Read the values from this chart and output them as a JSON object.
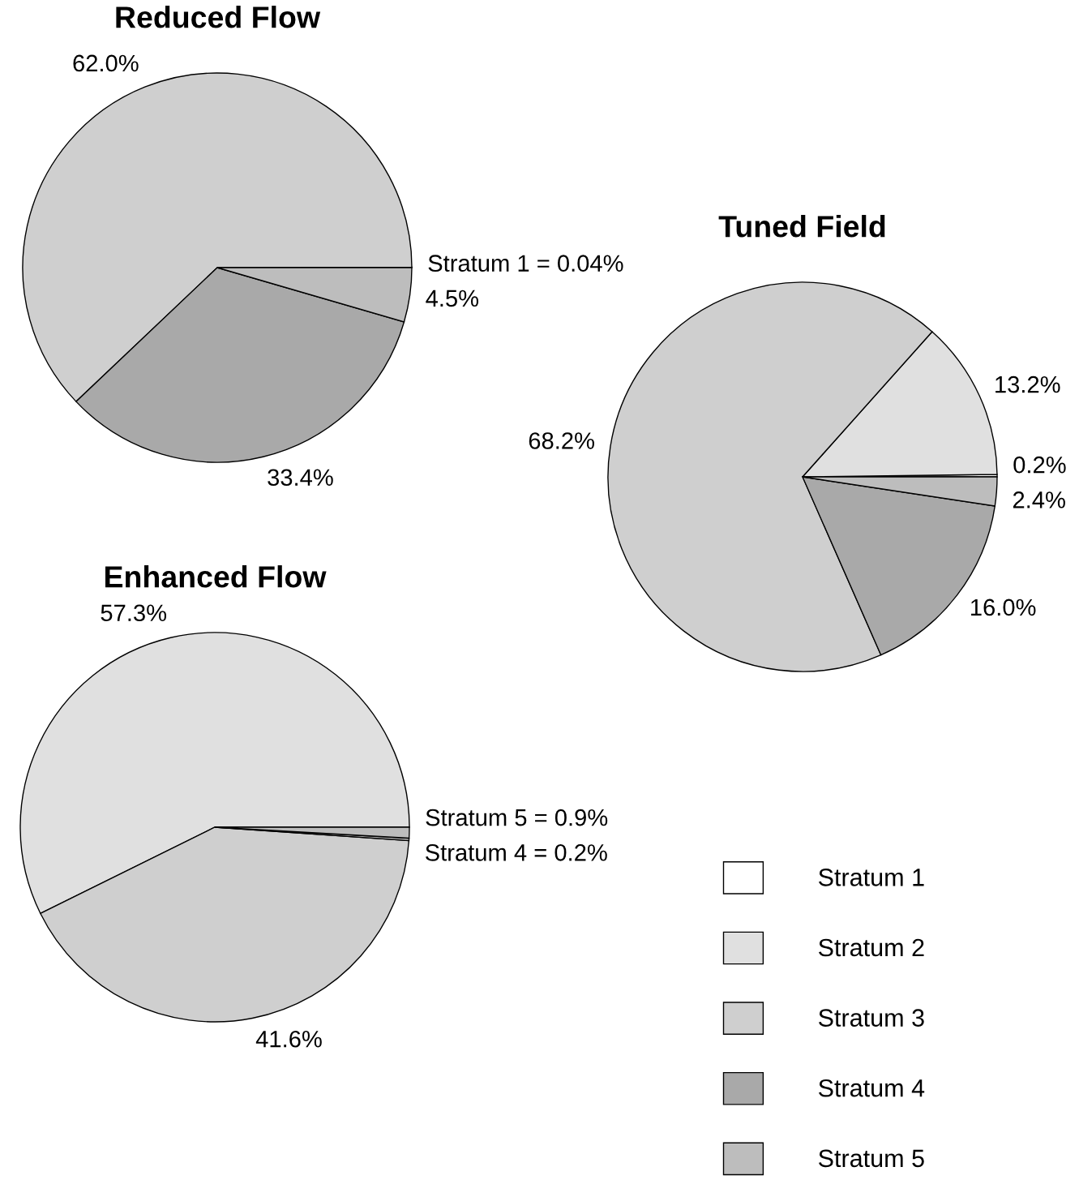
{
  "chart_data": [
    {
      "type": "pie",
      "title": "Reduced Flow",
      "categories": [
        null,
        null,
        null,
        null
      ],
      "values": [
        0.04,
        62.0,
        33.4,
        4.5
      ],
      "colors": [
        "#ffffff",
        "#cfcfcf",
        "#a9a9a9",
        "#bdbdbd"
      ],
      "value_labels": [
        "Stratum 1 = 0.04%",
        "62.0%",
        "33.4%",
        "4.5%"
      ]
    },
    {
      "type": "pie",
      "title": "Tuned Field",
      "categories": [
        "Stratum 1",
        "Stratum 2",
        "Stratum 3",
        "Stratum 4",
        "Stratum 5"
      ],
      "values": [
        0.2,
        13.2,
        68.2,
        16.0,
        2.4
      ],
      "colors": [
        "#ffffff",
        "#e0e0e0",
        "#cfcfcf",
        "#a9a9a9",
        "#bdbdbd"
      ],
      "value_labels": [
        "0.2%",
        "13.2%",
        "68.2%",
        "16.0%",
        "2.4%"
      ],
      "legend": "bottom"
    },
    {
      "type": "pie",
      "title": "Enhanced Flow",
      "categories": [
        null,
        null,
        null,
        null
      ],
      "values": [
        57.3,
        41.6,
        0.2,
        0.9
      ],
      "colors": [
        "#e0e0e0",
        "#cfcfcf",
        "#a9a9a9",
        "#bdbdbd"
      ],
      "value_labels": [
        "57.3%",
        "41.6%",
        "Stratum 4 = 0.2%",
        "Stratum 5 = 0.9%"
      ]
    }
  ]
}
